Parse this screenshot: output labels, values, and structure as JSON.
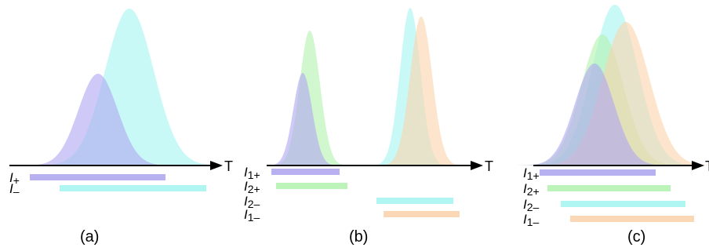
{
  "colors": {
    "purple": "#b0a8f0",
    "cyan": "#a6f5f2",
    "green": "#b4f2b0",
    "orange": "#fad4ae",
    "axis": "#000000"
  },
  "axis_label": "T",
  "panels": [
    {
      "caption": "(a)",
      "curves": [
        {
          "color": "cyan",
          "center": 165,
          "height": 200,
          "sigma": 31
        },
        {
          "color": "purple",
          "center": 125,
          "height": 117,
          "sigma": 25
        }
      ],
      "intervals": [
        {
          "label_main": "I",
          "label_sub": "+",
          "color": "purple",
          "start": 38,
          "end": 211
        },
        {
          "label_main": "I",
          "label_sub": "–",
          "color": "cyan",
          "start": 76,
          "end": 263
        }
      ]
    },
    {
      "caption": "(b)",
      "curves": [
        {
          "color": "green",
          "center": 395,
          "height": 172,
          "sigma": 13
        },
        {
          "color": "purple",
          "center": 386,
          "height": 118,
          "sigma": 12
        },
        {
          "color": "cyan",
          "center": 523,
          "height": 201,
          "sigma": 13
        },
        {
          "color": "orange",
          "center": 537,
          "height": 190,
          "sigma": 14
        }
      ],
      "intervals": [
        {
          "label_main": "I",
          "label_sub": "1+",
          "color": "purple",
          "start": 346,
          "end": 433
        },
        {
          "label_main": "I",
          "label_sub": "2+",
          "color": "green",
          "start": 352,
          "end": 443
        },
        {
          "label_main": "I",
          "label_sub": "2–",
          "color": "cyan",
          "start": 480,
          "end": 578
        },
        {
          "label_main": "I",
          "label_sub": "1–",
          "color": "orange",
          "start": 489,
          "end": 586
        }
      ]
    },
    {
      "caption": "(c)",
      "curves": [
        {
          "color": "cyan",
          "center": 784,
          "height": 205,
          "sigma": 29
        },
        {
          "color": "green",
          "center": 768,
          "height": 167,
          "sigma": 27
        },
        {
          "color": "orange",
          "center": 798,
          "height": 183,
          "sigma": 30
        },
        {
          "color": "purple",
          "center": 758,
          "height": 130,
          "sigma": 25
        }
      ],
      "intervals": [
        {
          "label_main": "I",
          "label_sub": "1+",
          "color": "purple",
          "start": 688,
          "end": 836
        },
        {
          "label_main": "I",
          "label_sub": "2+",
          "color": "green",
          "start": 698,
          "end": 855
        },
        {
          "label_main": "I",
          "label_sub": "2–",
          "color": "cyan",
          "start": 715,
          "end": 874
        },
        {
          "label_main": "I",
          "label_sub": "1–",
          "color": "orange",
          "start": 727,
          "end": 885
        }
      ]
    }
  ]
}
